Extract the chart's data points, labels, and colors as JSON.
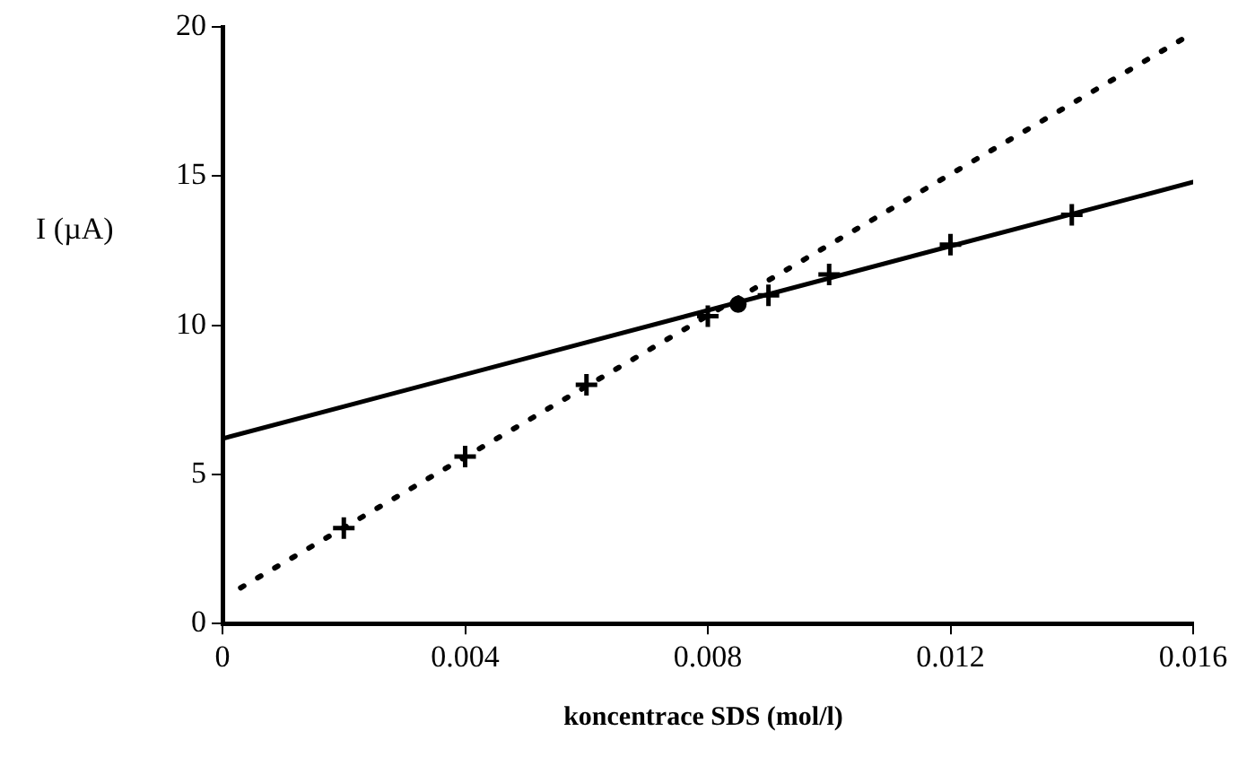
{
  "chart_data": {
    "type": "scatter",
    "xlabel": "koncentrace SDS (mol/l)",
    "ylabel": "I (µA)",
    "xlim": [
      0,
      0.016
    ],
    "xticks": [
      0,
      0.004,
      0.008,
      0.012,
      0.016
    ],
    "ylim": [
      0,
      20
    ],
    "yticks": [
      0,
      5,
      10,
      15,
      20
    ],
    "grid": false,
    "legend": false,
    "series": [
      {
        "marker": "cross",
        "color": "#000000",
        "x": [
          0.002,
          0.004,
          0.006,
          0.008
        ],
        "values": [
          3.2,
          5.6,
          8.0,
          10.3
        ]
      },
      {
        "marker": "cross",
        "color": "#000000",
        "x": [
          0.009,
          0.01,
          0.012,
          0.014
        ],
        "values": [
          11.0,
          11.7,
          12.7,
          13.7
        ]
      },
      {
        "marker": "circle",
        "color": "#000000",
        "x": [
          0.0085
        ],
        "values": [
          10.7
        ]
      },
      {
        "type": "line",
        "line_style": "dotted",
        "marker": "none",
        "color": "#000000",
        "x": [
          0.0003,
          0.016
        ],
        "values": [
          1.2,
          19.8
        ]
      },
      {
        "type": "line",
        "line_style": "solid",
        "marker": "none",
        "color": "#000000",
        "x": [
          0,
          0.016
        ],
        "values": [
          6.2,
          14.8
        ]
      }
    ]
  }
}
